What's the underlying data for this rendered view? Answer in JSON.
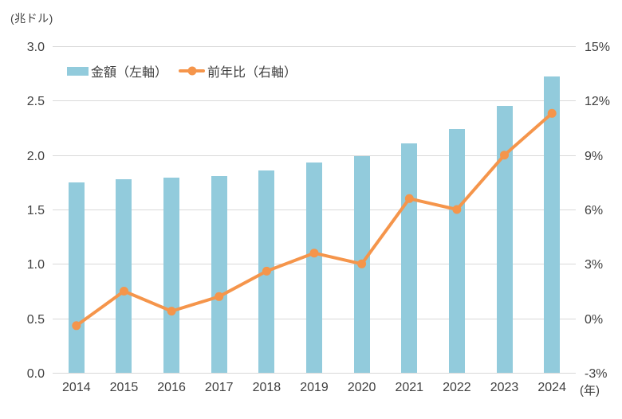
{
  "colors": {
    "bar": "#92CBDC",
    "line": "#F5954B",
    "gridline": "#D9D9D9",
    "text": "#404040"
  },
  "chart_data": {
    "type": "bar",
    "subtype": "bar+line dual axis",
    "categories": [
      "2014",
      "2015",
      "2016",
      "2017",
      "2018",
      "2019",
      "2020",
      "2021",
      "2022",
      "2023",
      "2024"
    ],
    "series": [
      {
        "name": "金額（左軸）",
        "type": "bar",
        "axis": "left",
        "color": "#92CBDC",
        "values": [
          1.75,
          1.78,
          1.79,
          1.81,
          1.86,
          1.93,
          1.99,
          2.11,
          2.24,
          2.45,
          2.72
        ]
      },
      {
        "name": "前年比（右軸）",
        "type": "line",
        "axis": "right",
        "color": "#F5954B",
        "values": [
          -0.4,
          1.5,
          0.4,
          1.2,
          2.6,
          3.6,
          3.0,
          6.6,
          6.0,
          9.0,
          11.3
        ]
      }
    ],
    "left_axis": {
      "title": "(兆ドル)",
      "min": 0.0,
      "max": 3.0,
      "step": 0.5,
      "tick_labels": [
        "3.0",
        "2.5",
        "2.0",
        "1.5",
        "1.0",
        "0.5",
        "0.0"
      ]
    },
    "right_axis": {
      "min": -3,
      "max": 15,
      "step": 3,
      "tick_labels": [
        "15%",
        "12%",
        "9%",
        "6%",
        "3%",
        "0%",
        "-3%"
      ]
    },
    "x_axis": {
      "unit_label": "(年)",
      "tick_labels": [
        "2014",
        "2015",
        "2016",
        "2017",
        "2018",
        "2019",
        "2020",
        "2021",
        "2022",
        "2023",
        "2024"
      ]
    },
    "legend_position": "top-left inside plot",
    "grid": "horizontal only"
  }
}
